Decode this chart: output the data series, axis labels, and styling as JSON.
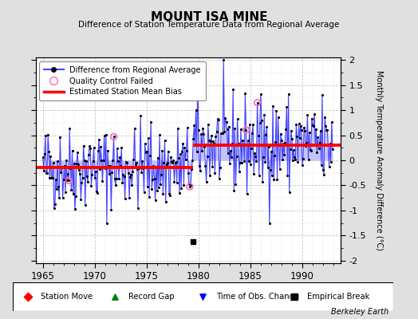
{
  "title": "MOUNT ISA MINE",
  "subtitle": "Difference of Station Temperature Data from Regional Average",
  "ylabel": "Monthly Temperature Anomaly Difference (°C)",
  "xlabel_years": [
    1965,
    1970,
    1975,
    1980,
    1985,
    1990
  ],
  "xlim": [
    1964.3,
    1993.7
  ],
  "ylim": [
    -2.05,
    2.05
  ],
  "yticks_right": [
    -2,
    -1.5,
    -1,
    -0.5,
    0,
    0.5,
    1,
    1.5,
    2
  ],
  "yticks_left": [
    -2,
    -1.5,
    -1,
    -0.5,
    0,
    0.5,
    1,
    1.5,
    2
  ],
  "bias_x1_start": 1964.3,
  "bias_x1_end": 1979.5,
  "bias_val1": -0.15,
  "bias_x2_start": 1979.5,
  "bias_x2_end": 1993.7,
  "bias_val2": 0.3,
  "empirical_break_x": 1979.5,
  "empirical_break_y": -1.62,
  "background_color": "#e0e0e0",
  "plot_bg_color": "#ffffff",
  "line_color": "#4444ff",
  "fill_color": "#aaaaff",
  "dot_color": "#000000",
  "bias_color": "#ff0000",
  "qc_color": "#ff69b4",
  "grid_color": "#c8c8c8",
  "seed": 42,
  "qc_indices": [
    30,
    82,
    170,
    235,
    248
  ]
}
